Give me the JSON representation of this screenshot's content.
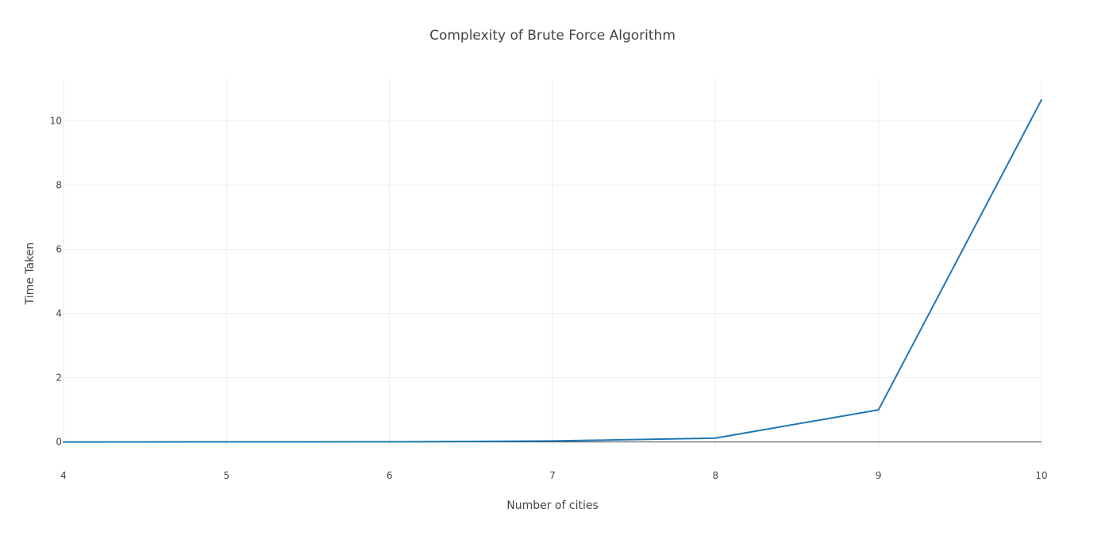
{
  "chart_data": {
    "type": "line",
    "title": "Complexity of Brute Force Algorithm",
    "xlabel": "Number of cities",
    "ylabel": "Time Taken",
    "x": [
      4,
      5,
      6,
      7,
      8,
      9,
      10
    ],
    "series": [
      {
        "values": [
          0.0003,
          0.0012,
          0.0048,
          0.03,
          0.12,
          1.0,
          10.66
        ]
      }
    ],
    "xlim": [
      4,
      10
    ],
    "ylim": [
      -0.8,
      11.3
    ],
    "xticks": [
      4,
      5,
      6,
      7,
      8,
      9,
      10
    ],
    "yticks": [
      0,
      2,
      4,
      6,
      8,
      10
    ],
    "grid": true,
    "line_color": "#1f77b4",
    "grid_color": "#eeeeee",
    "zero_line_color": "#444444"
  }
}
